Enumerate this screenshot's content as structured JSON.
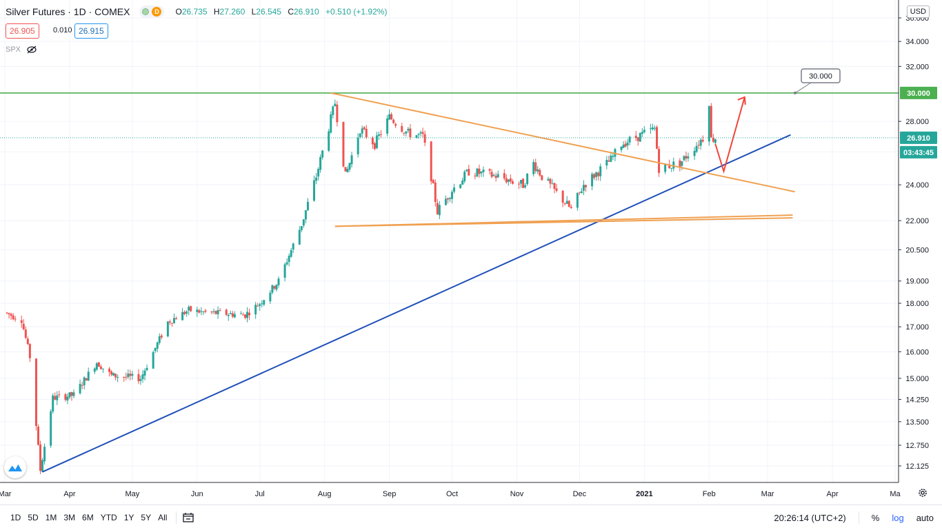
{
  "header": {
    "symbol": "Silver Futures · 1D · COMEX",
    "ohlc_prefix": "O",
    "open": "26.735",
    "high_prefix": "H",
    "high": "27.260",
    "low_prefix": "L",
    "low": "26.545",
    "close_prefix": "C",
    "close": "26.910",
    "change": "+0.510 (+1.92%)",
    "market_badge": "D",
    "bid": "26.905",
    "spread": "0.010",
    "ask": "26.915",
    "indicator": "SPX",
    "currency": "USD"
  },
  "price_axis": {
    "ticks": [
      "36.000",
      "34.000",
      "32.000",
      "30.000",
      "28.000",
      "26.910",
      "24.000",
      "22.000",
      "20.500",
      "19.000",
      "18.000",
      "17.000",
      "16.000",
      "15.000",
      "14.250",
      "13.500",
      "12.750",
      "12.125"
    ],
    "current_price": "26.910",
    "countdown": "03:43:45",
    "level_label": "30.000",
    "level_callout": "30.000"
  },
  "time_axis": {
    "labels": [
      "Mar",
      "Apr",
      "May",
      "Jun",
      "Jul",
      "Aug",
      "Sep",
      "Oct",
      "Nov",
      "Dec",
      "2021",
      "Feb",
      "Mar",
      "Apr",
      "Ma"
    ]
  },
  "bottom_bar": {
    "timeframes": [
      "1D",
      "5D",
      "1M",
      "3M",
      "6M",
      "YTD",
      "1Y",
      "5Y",
      "All"
    ],
    "clock": "20:26:14 (UTC+2)",
    "percent": "%",
    "log": "log",
    "auto": "auto"
  },
  "colors": {
    "up": "#26a69a",
    "down": "#ef5350",
    "resistance": "#4caf50",
    "trend": "#1e4fb8",
    "triangle": "#f0a050",
    "arrow": "#f44336",
    "current_price": "#26a69a"
  },
  "chart_data": {
    "type": "candlestick",
    "title": "Silver Futures · 1D · COMEX",
    "scale": "log",
    "ylim": [
      11.8,
      37.0
    ],
    "x_range": [
      "2020-03-01",
      "2021-05-01"
    ],
    "anchors": [
      {
        "date": "2020-03-01",
        "price": 17.6
      },
      {
        "date": "2020-03-09",
        "price": 17.3
      },
      {
        "date": "2020-03-13",
        "price": 15.8
      },
      {
        "date": "2020-03-18",
        "price": 12.0
      },
      {
        "date": "2020-03-24",
        "price": 14.3
      },
      {
        "date": "2020-04-03",
        "price": 14.4
      },
      {
        "date": "2020-04-14",
        "price": 15.6
      },
      {
        "date": "2020-04-21",
        "price": 15.1
      },
      {
        "date": "2020-05-05",
        "price": 15.0
      },
      {
        "date": "2020-05-18",
        "price": 17.2
      },
      {
        "date": "2020-05-28",
        "price": 17.7
      },
      {
        "date": "2020-06-05",
        "price": 17.6
      },
      {
        "date": "2020-06-24",
        "price": 17.5
      },
      {
        "date": "2020-07-01",
        "price": 18.0
      },
      {
        "date": "2020-07-10",
        "price": 19.0
      },
      {
        "date": "2020-07-21",
        "price": 21.8
      },
      {
        "date": "2020-07-28",
        "price": 24.5
      },
      {
        "date": "2020-08-06",
        "price": 29.3
      },
      {
        "date": "2020-08-11",
        "price": 24.5
      },
      {
        "date": "2020-08-18",
        "price": 27.5
      },
      {
        "date": "2020-08-25",
        "price": 26.5
      },
      {
        "date": "2020-09-01",
        "price": 28.3
      },
      {
        "date": "2020-09-10",
        "price": 27.2
      },
      {
        "date": "2020-09-17",
        "price": 27.0
      },
      {
        "date": "2020-09-21",
        "price": 24.5
      },
      {
        "date": "2020-09-24",
        "price": 22.5
      },
      {
        "date": "2020-10-01",
        "price": 23.7
      },
      {
        "date": "2020-10-09",
        "price": 24.8
      },
      {
        "date": "2020-10-23",
        "price": 24.5
      },
      {
        "date": "2020-11-04",
        "price": 24.0
      },
      {
        "date": "2020-11-09",
        "price": 25.3
      },
      {
        "date": "2020-11-13",
        "price": 24.5
      },
      {
        "date": "2020-11-27",
        "price": 22.6
      },
      {
        "date": "2020-12-03",
        "price": 24.0
      },
      {
        "date": "2020-12-16",
        "price": 25.5
      },
      {
        "date": "2020-12-21",
        "price": 26.5
      },
      {
        "date": "2021-01-06",
        "price": 27.5
      },
      {
        "date": "2021-01-08",
        "price": 25.0
      },
      {
        "date": "2021-01-18",
        "price": 25.3
      },
      {
        "date": "2021-01-29",
        "price": 26.9
      },
      {
        "date": "2021-02-01",
        "price": 29.4
      },
      {
        "date": "2021-02-02",
        "price": 26.8
      },
      {
        "date": "2021-02-04",
        "price": 26.91
      }
    ],
    "annotations": [
      {
        "type": "horizontal-line",
        "price": 30.0,
        "color": "#4caf50",
        "label": "30.000"
      },
      {
        "type": "trendline",
        "name": "ascending support",
        "from": {
          "date": "2020-03-19",
          "price": 11.95
        },
        "to": {
          "date": "2021-03-12",
          "price": 27.1
        }
      },
      {
        "type": "trendline",
        "name": "descending resistance",
        "from": {
          "date": "2020-08-04",
          "price": 30.0
        },
        "to": {
          "date": "2021-03-14",
          "price": 23.6
        }
      },
      {
        "type": "trendline",
        "name": "triangle base 1",
        "from": {
          "date": "2020-08-06",
          "price": 21.7
        },
        "to": {
          "date": "2021-03-13",
          "price": 22.3
        }
      },
      {
        "type": "trendline",
        "name": "triangle base 2",
        "from": {
          "date": "2020-08-06",
          "price": 21.7
        },
        "to": {
          "date": "2021-03-13",
          "price": 22.15
        }
      },
      {
        "type": "projection-arrow",
        "points": [
          {
            "date": "2021-02-04",
            "price": 26.5
          },
          {
            "date": "2021-02-08",
            "price": 24.8
          },
          {
            "date": "2021-02-18",
            "price": 29.7
          }
        ],
        "color": "#f44336"
      }
    ]
  }
}
